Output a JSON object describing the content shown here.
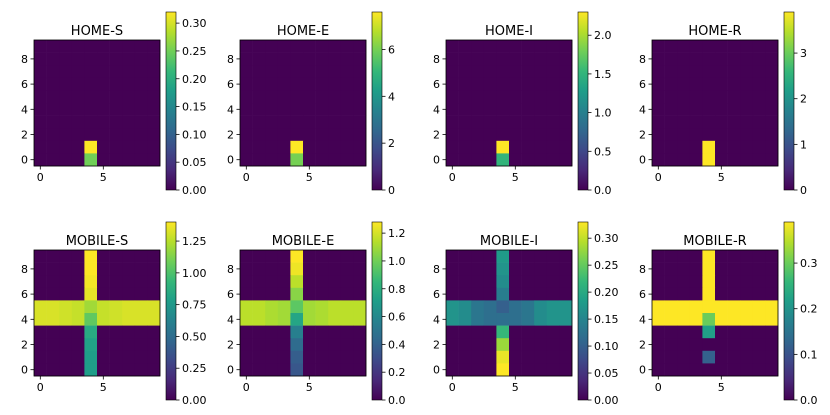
{
  "chart_data": [
    {
      "type": "heatmap",
      "title": "HOME-S",
      "colormap": "viridis",
      "xticks": [
        0,
        5
      ],
      "yticks": [
        0,
        2,
        4,
        6,
        8
      ],
      "vmin": 0,
      "vmax": 0.32,
      "colorbar_ticks": [
        "0.00",
        "0.05",
        "0.10",
        "0.15",
        "0.20",
        "0.25",
        "0.30"
      ],
      "colorbar_values": [
        0,
        0.05,
        0.1,
        0.15,
        0.2,
        0.25,
        0.3
      ],
      "grid": [
        [
          0,
          0,
          0,
          0,
          0,
          0,
          0,
          0,
          0,
          0
        ],
        [
          0,
          0,
          0,
          0,
          0,
          0,
          0,
          0,
          0,
          0
        ],
        [
          0,
          0,
          0,
          0,
          0,
          0,
          0,
          0,
          0,
          0
        ],
        [
          0,
          0,
          0,
          0,
          0,
          0,
          0,
          0,
          0,
          0
        ],
        [
          0,
          0,
          0,
          0,
          0,
          0,
          0,
          0,
          0,
          0
        ],
        [
          0,
          0,
          0,
          0,
          0,
          0,
          0,
          0,
          0,
          0
        ],
        [
          0,
          0,
          0,
          0,
          0,
          0,
          0,
          0,
          0,
          0
        ],
        [
          0,
          0,
          0,
          0,
          0,
          0,
          0,
          0,
          0,
          0
        ],
        [
          0,
          0,
          0,
          0,
          0.32,
          0,
          0,
          0,
          0,
          0
        ],
        [
          0,
          0,
          0,
          0,
          0.25,
          0,
          0,
          0,
          0,
          0
        ]
      ]
    },
    {
      "type": "heatmap",
      "title": "HOME-E",
      "colormap": "viridis",
      "xticks": [
        0,
        5
      ],
      "yticks": [
        0,
        2,
        4,
        6,
        8
      ],
      "vmin": 0,
      "vmax": 7.6,
      "colorbar_ticks": [
        "0",
        "2",
        "4",
        "6"
      ],
      "colorbar_values": [
        0,
        2,
        4,
        6
      ],
      "grid": [
        [
          0,
          0,
          0,
          0,
          0,
          0,
          0,
          0,
          0,
          0
        ],
        [
          0,
          0,
          0,
          0,
          0,
          0,
          0,
          0,
          0,
          0
        ],
        [
          0,
          0,
          0,
          0,
          0,
          0,
          0,
          0,
          0,
          0
        ],
        [
          0,
          0,
          0,
          0,
          0,
          0,
          0,
          0,
          0,
          0
        ],
        [
          0,
          0,
          0,
          0,
          0,
          0,
          0,
          0,
          0,
          0
        ],
        [
          0,
          0,
          0,
          0,
          0,
          0,
          0,
          0,
          0,
          0
        ],
        [
          0,
          0,
          0,
          0,
          0,
          0,
          0,
          0,
          0,
          0
        ],
        [
          0,
          0,
          0,
          0,
          0,
          0,
          0,
          0,
          0,
          0
        ],
        [
          0,
          0,
          0,
          0,
          7.6,
          0,
          0,
          0,
          0,
          0
        ],
        [
          0,
          0,
          0,
          0,
          6.0,
          0,
          0,
          0,
          0,
          0
        ]
      ]
    },
    {
      "type": "heatmap",
      "title": "HOME-I",
      "colormap": "viridis",
      "xticks": [
        0,
        5
      ],
      "yticks": [
        0,
        2,
        4,
        6,
        8
      ],
      "vmin": 0,
      "vmax": 2.3,
      "colorbar_ticks": [
        "0.0",
        "0.5",
        "1.0",
        "1.5",
        "2.0"
      ],
      "colorbar_values": [
        0,
        0.5,
        1.0,
        1.5,
        2.0
      ],
      "grid": [
        [
          0,
          0,
          0,
          0,
          0,
          0,
          0,
          0,
          0,
          0
        ],
        [
          0,
          0,
          0,
          0,
          0,
          0,
          0,
          0,
          0,
          0
        ],
        [
          0,
          0,
          0,
          0,
          0,
          0,
          0,
          0,
          0,
          0
        ],
        [
          0,
          0,
          0,
          0,
          0,
          0,
          0,
          0,
          0,
          0
        ],
        [
          0,
          0,
          0,
          0,
          0,
          0,
          0,
          0,
          0,
          0
        ],
        [
          0,
          0,
          0,
          0,
          0,
          0,
          0,
          0,
          0,
          0
        ],
        [
          0,
          0,
          0,
          0,
          0,
          0,
          0,
          0,
          0,
          0
        ],
        [
          0,
          0,
          0,
          0,
          0,
          0,
          0,
          0,
          0,
          0
        ],
        [
          0,
          0,
          0,
          0,
          2.3,
          0,
          0,
          0,
          0,
          0
        ],
        [
          0,
          0,
          0,
          0,
          1.5,
          0,
          0,
          0,
          0,
          0
        ]
      ]
    },
    {
      "type": "heatmap",
      "title": "HOME-R",
      "colormap": "viridis",
      "xticks": [
        0,
        5
      ],
      "yticks": [
        0,
        2,
        4,
        6,
        8
      ],
      "vmin": 0,
      "vmax": 3.9,
      "colorbar_ticks": [
        "0",
        "1",
        "2",
        "3"
      ],
      "colorbar_values": [
        0,
        1,
        2,
        3
      ],
      "grid": [
        [
          0,
          0,
          0,
          0,
          0,
          0,
          0,
          0,
          0,
          0
        ],
        [
          0,
          0,
          0,
          0,
          0,
          0,
          0,
          0,
          0,
          0
        ],
        [
          0,
          0,
          0,
          0,
          0,
          0,
          0,
          0,
          0,
          0
        ],
        [
          0,
          0,
          0,
          0,
          0,
          0,
          0,
          0,
          0,
          0
        ],
        [
          0,
          0,
          0,
          0,
          0,
          0,
          0,
          0,
          0,
          0
        ],
        [
          0,
          0,
          0,
          0,
          0,
          0,
          0,
          0,
          0,
          0
        ],
        [
          0,
          0,
          0,
          0,
          0,
          0,
          0,
          0,
          0,
          0
        ],
        [
          0,
          0,
          0,
          0,
          0,
          0,
          0,
          0,
          0,
          0
        ],
        [
          0,
          0,
          0,
          0,
          3.9,
          0,
          0,
          0,
          0,
          0
        ],
        [
          0,
          0,
          0,
          0,
          3.9,
          0,
          0,
          0,
          0,
          0
        ]
      ]
    },
    {
      "type": "heatmap",
      "title": "MOBILE-S",
      "colormap": "viridis",
      "xticks": [
        0,
        5
      ],
      "yticks": [
        0,
        2,
        4,
        6,
        8
      ],
      "vmin": 0,
      "vmax": 1.4,
      "colorbar_ticks": [
        "0.00",
        "0.25",
        "0.50",
        "0.75",
        "1.00",
        "1.25"
      ],
      "colorbar_values": [
        0,
        0.25,
        0.5,
        0.75,
        1.0,
        1.25
      ],
      "grid": [
        [
          0,
          0,
          0,
          0,
          1.4,
          0,
          0,
          0,
          0,
          0
        ],
        [
          0,
          0,
          0,
          0,
          1.4,
          0,
          0,
          0,
          0,
          0
        ],
        [
          0,
          0,
          0,
          0,
          1.38,
          0,
          0,
          0,
          0,
          0
        ],
        [
          0,
          0,
          0,
          0,
          1.35,
          0,
          0,
          0,
          0,
          0
        ],
        [
          1.32,
          1.32,
          1.3,
          1.28,
          1.2,
          1.28,
          1.3,
          1.32,
          1.32,
          1.32
        ],
        [
          1.32,
          1.32,
          1.3,
          1.28,
          1.05,
          1.28,
          1.3,
          1.32,
          1.32,
          1.32
        ],
        [
          0,
          0,
          0,
          0,
          0.85,
          0,
          0,
          0,
          0,
          0
        ],
        [
          0,
          0,
          0,
          0,
          0.8,
          0,
          0,
          0,
          0,
          0
        ],
        [
          0,
          0,
          0,
          0,
          0.78,
          0,
          0,
          0,
          0,
          0
        ],
        [
          0,
          0,
          0,
          0,
          0.78,
          0,
          0,
          0,
          0,
          0
        ]
      ]
    },
    {
      "type": "heatmap",
      "title": "MOBILE-E",
      "colormap": "viridis",
      "xticks": [
        0,
        5
      ],
      "yticks": [
        0,
        2,
        4,
        6,
        8
      ],
      "vmin": 0,
      "vmax": 1.28,
      "colorbar_ticks": [
        "0.0",
        "0.2",
        "0.4",
        "0.6",
        "0.8",
        "1.0",
        "1.2"
      ],
      "colorbar_values": [
        0,
        0.2,
        0.4,
        0.6,
        0.8,
        1.0,
        1.2
      ],
      "grid": [
        [
          0,
          0,
          0,
          0,
          1.28,
          0,
          0,
          0,
          0,
          0
        ],
        [
          0,
          0,
          0,
          0,
          1.25,
          0,
          0,
          0,
          0,
          0
        ],
        [
          0,
          0,
          0,
          0,
          1.15,
          0,
          0,
          0,
          0,
          0
        ],
        [
          0,
          0,
          0,
          0,
          1.05,
          0,
          0,
          0,
          0,
          0
        ],
        [
          1.15,
          1.15,
          1.12,
          1.1,
          0.95,
          1.1,
          1.12,
          1.15,
          1.15,
          1.15
        ],
        [
          1.15,
          1.15,
          1.12,
          1.1,
          0.75,
          1.1,
          1.12,
          1.15,
          1.15,
          1.15
        ],
        [
          0,
          0,
          0,
          0,
          0.55,
          0,
          0,
          0,
          0,
          0
        ],
        [
          0,
          0,
          0,
          0,
          0.45,
          0,
          0,
          0,
          0,
          0
        ],
        [
          0,
          0,
          0,
          0,
          0.38,
          0,
          0,
          0,
          0,
          0
        ],
        [
          0,
          0,
          0,
          0,
          0.35,
          0,
          0,
          0,
          0,
          0
        ]
      ]
    },
    {
      "type": "heatmap",
      "title": "MOBILE-I",
      "colormap": "viridis",
      "xticks": [
        0,
        5
      ],
      "yticks": [
        0,
        2,
        4,
        6,
        8
      ],
      "vmin": 0,
      "vmax": 0.33,
      "colorbar_ticks": [
        "0.00",
        "0.05",
        "0.10",
        "0.15",
        "0.20",
        "0.25",
        "0.30"
      ],
      "colorbar_values": [
        0,
        0.05,
        0.1,
        0.15,
        0.2,
        0.25,
        0.3
      ],
      "grid": [
        [
          0,
          0,
          0,
          0,
          0.18,
          0,
          0,
          0,
          0,
          0
        ],
        [
          0,
          0,
          0,
          0,
          0.17,
          0,
          0,
          0,
          0,
          0
        ],
        [
          0,
          0,
          0,
          0,
          0.16,
          0,
          0,
          0,
          0,
          0
        ],
        [
          0,
          0,
          0,
          0,
          0.14,
          0,
          0,
          0,
          0,
          0
        ],
        [
          0.17,
          0.16,
          0.13,
          0.12,
          0.1,
          0.12,
          0.13,
          0.16,
          0.17,
          0.17
        ],
        [
          0.17,
          0.16,
          0.13,
          0.12,
          0.12,
          0.12,
          0.13,
          0.16,
          0.17,
          0.17
        ],
        [
          0,
          0,
          0,
          0,
          0.22,
          0,
          0,
          0,
          0,
          0
        ],
        [
          0,
          0,
          0,
          0,
          0.28,
          0,
          0,
          0,
          0,
          0
        ],
        [
          0,
          0,
          0,
          0,
          0.32,
          0,
          0,
          0,
          0,
          0
        ],
        [
          0,
          0,
          0,
          0,
          0.33,
          0,
          0,
          0,
          0,
          0
        ]
      ]
    },
    {
      "type": "heatmap",
      "title": "MOBILE-R",
      "colormap": "viridis",
      "xticks": [
        0,
        5
      ],
      "yticks": [
        0,
        2,
        4,
        6,
        8
      ],
      "vmin": 0,
      "vmax": 0.39,
      "colorbar_ticks": [
        "0.0",
        "0.1",
        "0.2",
        "0.3"
      ],
      "colorbar_values": [
        0,
        0.1,
        0.2,
        0.3
      ],
      "grid": [
        [
          0,
          0,
          0,
          0,
          0.39,
          0,
          0,
          0,
          0,
          0
        ],
        [
          0,
          0,
          0,
          0,
          0.39,
          0,
          0,
          0,
          0,
          0
        ],
        [
          0,
          0,
          0,
          0,
          0.39,
          0,
          0,
          0,
          0,
          0
        ],
        [
          0,
          0,
          0,
          0,
          0.39,
          0,
          0,
          0,
          0,
          0
        ],
        [
          0.39,
          0.39,
          0.39,
          0.39,
          0.39,
          0.39,
          0.39,
          0.39,
          0.39,
          0.39
        ],
        [
          0.39,
          0.39,
          0.39,
          0.39,
          0.3,
          0.39,
          0.39,
          0.39,
          0.39,
          0.39
        ],
        [
          0,
          0,
          0,
          0,
          0.22,
          0,
          0,
          0,
          0,
          0
        ],
        [
          0,
          0,
          0,
          0,
          0,
          0,
          0,
          0,
          0,
          0
        ],
        [
          0,
          0,
          0,
          0,
          0.12,
          0,
          0,
          0,
          0,
          0
        ],
        [
          0,
          0,
          0,
          0,
          0,
          0,
          0,
          0,
          0,
          0
        ]
      ]
    }
  ]
}
